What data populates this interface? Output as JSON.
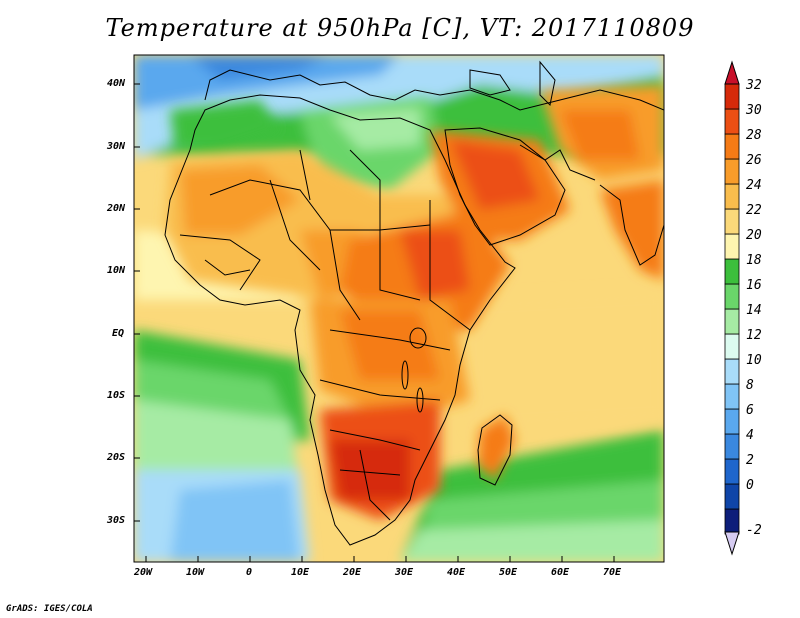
{
  "title": "Temperature at 950hPa [C], VT: 2017110809",
  "credit": "GrADS: IGES/COLA",
  "map": {
    "lat_labels": [
      "40N",
      "30N",
      "20N",
      "10N",
      "EQ",
      "10S",
      "20S",
      "30S"
    ],
    "lon_labels": [
      "20W",
      "10W",
      "0",
      "10E",
      "20E",
      "30E",
      "40E",
      "50E",
      "60E",
      "70E"
    ]
  },
  "colorbar": {
    "labels": [
      "32",
      "30",
      "28",
      "26",
      "24",
      "22",
      "20",
      "18",
      "16",
      "14",
      "12",
      "10",
      "8",
      "6",
      "4",
      "2",
      "0",
      "-2"
    ],
    "colors": [
      "#d62a0a",
      "#ec4f14",
      "#f57b16",
      "#f89c2a",
      "#f9bd4d",
      "#fbd97a",
      "#fef5b0",
      "#3cbf3c",
      "#6ad66a",
      "#a6eba4",
      "#dcfbf0",
      "#a9dcf9",
      "#80c4f6",
      "#5aa8ee",
      "#3a88df",
      "#1f66cc",
      "#0f45a8",
      "#0d1e7a"
    ]
  },
  "legend_items": [
    {
      "label": "30 - 32",
      "color": "#d62a0a"
    },
    {
      "label": "28 - 30",
      "color": "#ec4f14"
    },
    {
      "label": "26 - 28",
      "color": "#f57b16"
    },
    {
      "label": "24 - 26",
      "color": "#f89c2a"
    },
    {
      "label": "22 - 24",
      "color": "#f9bd4d"
    },
    {
      "label": "20 - 22",
      "color": "#fbd97a"
    },
    {
      "label": "18 - 20",
      "color": "#fef5b0"
    },
    {
      "label": "16 - 18",
      "color": "#3cbf3c"
    },
    {
      "label": "14 - 16",
      "color": "#6ad66a"
    },
    {
      "label": "12 - 14",
      "color": "#a6eba4"
    },
    {
      "label": "10 - 12",
      "color": "#dcfbf0"
    },
    {
      "label": "8 - 10",
      "color": "#a9dcf9"
    },
    {
      "label": "6 - 8",
      "color": "#80c4f6"
    },
    {
      "label": "4 - 6",
      "color": "#5aa8ee"
    },
    {
      "label": "2 - 4",
      "color": "#3a88df"
    },
    {
      "label": "0 - 2",
      "color": "#1f66cc"
    },
    {
      "label": "-2 - 0",
      "color": "#0f45a8"
    },
    {
      "label": "< -2",
      "color": "#0d1e7a"
    }
  ]
}
